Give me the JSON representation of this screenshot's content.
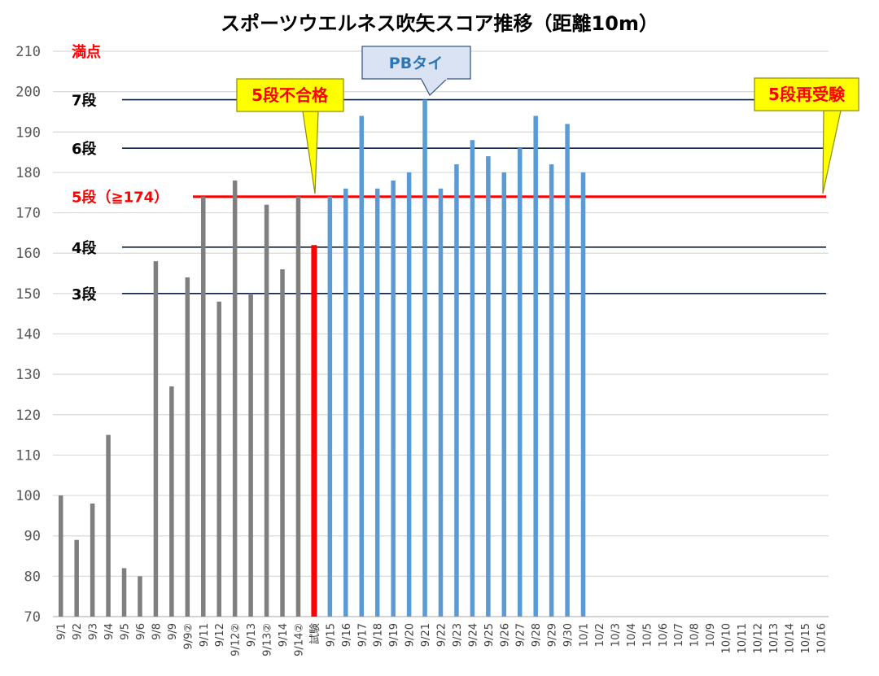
{
  "chart_data": {
    "type": "bar",
    "title": "スポーツウエルネス吹矢スコア推移（距離10m）",
    "xlabel": "",
    "ylabel": "",
    "ylim": [
      70,
      210
    ],
    "yticks": [
      70,
      80,
      90,
      100,
      110,
      120,
      130,
      140,
      150,
      160,
      170,
      180,
      190,
      200,
      210
    ],
    "grid": true,
    "categories": [
      "9/1",
      "9/2",
      "9/3",
      "9/4",
      "9/5",
      "9/6",
      "9/8",
      "9/9",
      "9/9②",
      "9/11",
      "9/12",
      "9/12②",
      "9/13",
      "9/13②",
      "9/14",
      "9/14②",
      "試験",
      "9/15",
      "9/16",
      "9/17",
      "9/18",
      "9/19",
      "9/20",
      "9/21",
      "9/22",
      "9/23",
      "9/24",
      "9/25",
      "9/26",
      "9/27",
      "9/28",
      "9/29",
      "9/30",
      "10/1",
      "10/2",
      "10/3",
      "10/4",
      "10/5",
      "10/6",
      "10/7",
      "10/8",
      "10/9",
      "10/10",
      "10/11",
      "10/12",
      "10/13",
      "10/14",
      "10/15",
      "10/16"
    ],
    "values": [
      100,
      89,
      98,
      115,
      82,
      80,
      158,
      127,
      154,
      174,
      148,
      178,
      150,
      172,
      156,
      174,
      162,
      174,
      176,
      194,
      176,
      178,
      180,
      198,
      176,
      182,
      188,
      184,
      180,
      186,
      194,
      182,
      192,
      180,
      null,
      null,
      null,
      null,
      null,
      null,
      null,
      null,
      null,
      null,
      null,
      null,
      null,
      null,
      null
    ],
    "bar_colors": {
      "before": "#7f7f7f",
      "exam": "#ff0000",
      "after": "#5b9bd5"
    },
    "levels": [
      {
        "label": "満点",
        "value": 210,
        "color": "#ff0000",
        "line": false
      },
      {
        "label": "7段",
        "value": 198,
        "color": "#000000",
        "line": true,
        "line_color": "#0b1f44"
      },
      {
        "label": "6段",
        "value": 186,
        "color": "#000000",
        "line": true,
        "line_color": "#0b1f44"
      },
      {
        "label": "5段（≧174）",
        "value": 174,
        "color": "#ff0000",
        "line": true,
        "line_color": "#ff0000"
      },
      {
        "label": "4段",
        "value": 161.5,
        "color": "#000000",
        "line": true,
        "line_color": "#0b1f44"
      },
      {
        "label": "3段",
        "value": 150,
        "color": "#000000",
        "line": true,
        "line_color": "#0b1f44"
      }
    ],
    "annotations": [
      {
        "text": "5段不合格",
        "style": "yellow"
      },
      {
        "text": "PBタイ",
        "style": "blue"
      },
      {
        "text": "5段再受験",
        "style": "yellow"
      }
    ]
  }
}
